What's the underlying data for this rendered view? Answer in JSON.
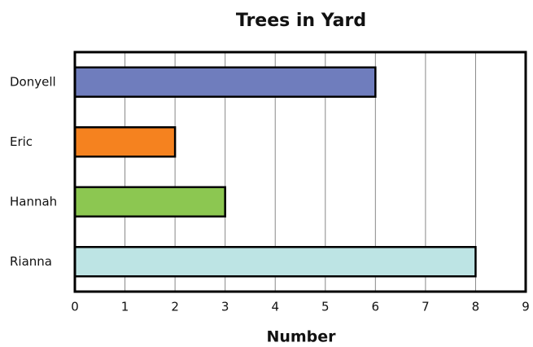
{
  "chart_data": {
    "type": "barh",
    "title": "Trees in Yard",
    "xlabel": "Number",
    "categories": [
      "Donyell",
      "Eric",
      "Hannah",
      "Rianna"
    ],
    "values": [
      6,
      2,
      3,
      8
    ],
    "colors": [
      "#6f7dbd",
      "#f5821f",
      "#8cc751",
      "#bde4e4"
    ],
    "xlim": [
      0,
      9
    ],
    "xticks": [
      0,
      1,
      2,
      3,
      4,
      5,
      6,
      7,
      8,
      9
    ],
    "grid": true
  }
}
